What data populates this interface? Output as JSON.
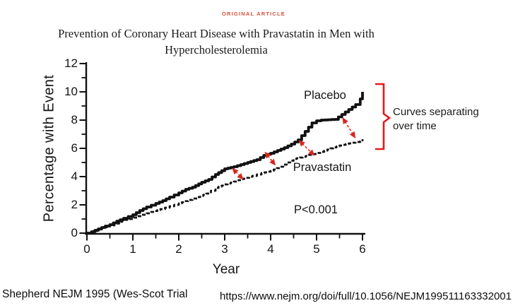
{
  "header": {
    "eyebrow": "ORIGINAL ARTICLE",
    "title_line1": "Prevention of Coronary Heart Disease with Pravastatin in Men with",
    "title_line2": "Hypercholesterolemia"
  },
  "annotation": {
    "line1": "Curves separating",
    "line2": "over time"
  },
  "footer": {
    "citation": "Shepherd NEJM 1995 (Wes-Scot Trial",
    "url": "https://www.nejm.org/doi/full/10.1056/NEJM199511163332001"
  },
  "colors": {
    "eyebrow_red": "#dd4c38",
    "arrow_red": "#d8271f",
    "bracket_red": "#e51a1a",
    "curve_black": "#111111"
  },
  "chart_data": {
    "type": "line",
    "xlabel": "Year",
    "ylabel": "Percentage with Event",
    "xlim": [
      0,
      6
    ],
    "ylim": [
      0,
      12
    ],
    "x_major_ticks": [
      0,
      1,
      2,
      3,
      4,
      5,
      6
    ],
    "x_minor_step": 0.5,
    "y_major_ticks": [
      0,
      2,
      4,
      6,
      8,
      10,
      12
    ],
    "y_minor_step": 1,
    "p_value": "P<0.001",
    "legend_position": "on-curve",
    "grid": false,
    "series": [
      {
        "name": "Placebo",
        "line_style": "solid",
        "points": [
          [
            0,
            0
          ],
          [
            0.1,
            0.1
          ],
          [
            0.25,
            0.3
          ],
          [
            0.4,
            0.5
          ],
          [
            0.5,
            0.6
          ],
          [
            0.65,
            0.85
          ],
          [
            0.8,
            1.05
          ],
          [
            1,
            1.3
          ],
          [
            1.15,
            1.6
          ],
          [
            1.3,
            1.85
          ],
          [
            1.5,
            2.1
          ],
          [
            1.65,
            2.3
          ],
          [
            1.8,
            2.55
          ],
          [
            2,
            2.85
          ],
          [
            2.15,
            3.1
          ],
          [
            2.3,
            3.25
          ],
          [
            2.5,
            3.6
          ],
          [
            2.65,
            3.8
          ],
          [
            2.8,
            4.15
          ],
          [
            3,
            4.55
          ],
          [
            3.2,
            4.7
          ],
          [
            3.35,
            4.85
          ],
          [
            3.5,
            5.0
          ],
          [
            3.7,
            5.2
          ],
          [
            3.85,
            5.5
          ],
          [
            4,
            5.65
          ],
          [
            4.15,
            5.85
          ],
          [
            4.3,
            6.05
          ],
          [
            4.45,
            6.3
          ],
          [
            4.6,
            6.6
          ],
          [
            4.75,
            7.2
          ],
          [
            4.9,
            7.8
          ],
          [
            5,
            7.95
          ],
          [
            5.1,
            8.0
          ],
          [
            5.4,
            8.05
          ],
          [
            5.55,
            8.4
          ],
          [
            5.7,
            8.75
          ],
          [
            5.85,
            9.1
          ],
          [
            5.95,
            9.5
          ],
          [
            6,
            10.0
          ]
        ]
      },
      {
        "name": "Pravastatin",
        "line_style": "dashed",
        "points": [
          [
            0,
            0
          ],
          [
            0.15,
            0.15
          ],
          [
            0.3,
            0.35
          ],
          [
            0.5,
            0.55
          ],
          [
            0.7,
            0.8
          ],
          [
            0.9,
            1.0
          ],
          [
            1,
            1.1
          ],
          [
            1.2,
            1.3
          ],
          [
            1.4,
            1.5
          ],
          [
            1.6,
            1.7
          ],
          [
            1.8,
            1.9
          ],
          [
            2,
            2.1
          ],
          [
            2.2,
            2.35
          ],
          [
            2.4,
            2.55
          ],
          [
            2.6,
            2.8
          ],
          [
            2.8,
            3.2
          ],
          [
            3,
            3.45
          ],
          [
            3.2,
            3.65
          ],
          [
            3.4,
            3.85
          ],
          [
            3.6,
            4.05
          ],
          [
            3.8,
            4.25
          ],
          [
            4,
            4.4
          ],
          [
            4.2,
            4.7
          ],
          [
            4.35,
            5.0
          ],
          [
            4.5,
            5.25
          ],
          [
            4.7,
            5.4
          ],
          [
            4.9,
            5.6
          ],
          [
            5.1,
            5.75
          ],
          [
            5.3,
            6.0
          ],
          [
            5.5,
            6.2
          ],
          [
            5.7,
            6.35
          ],
          [
            5.85,
            6.45
          ],
          [
            5.95,
            6.5
          ],
          [
            6,
            6.65
          ]
        ]
      }
    ],
    "gap_arrows": [
      {
        "from": [
          3.17,
          4.57
        ],
        "to": [
          3.4,
          3.82
        ]
      },
      {
        "from": [
          3.88,
          5.72
        ],
        "to": [
          4.1,
          4.82
        ]
      },
      {
        "from": [
          4.62,
          6.55
        ],
        "to": [
          4.95,
          5.5
        ]
      },
      {
        "from": [
          5.57,
          8.15
        ],
        "to": [
          5.84,
          6.75
        ]
      }
    ]
  }
}
